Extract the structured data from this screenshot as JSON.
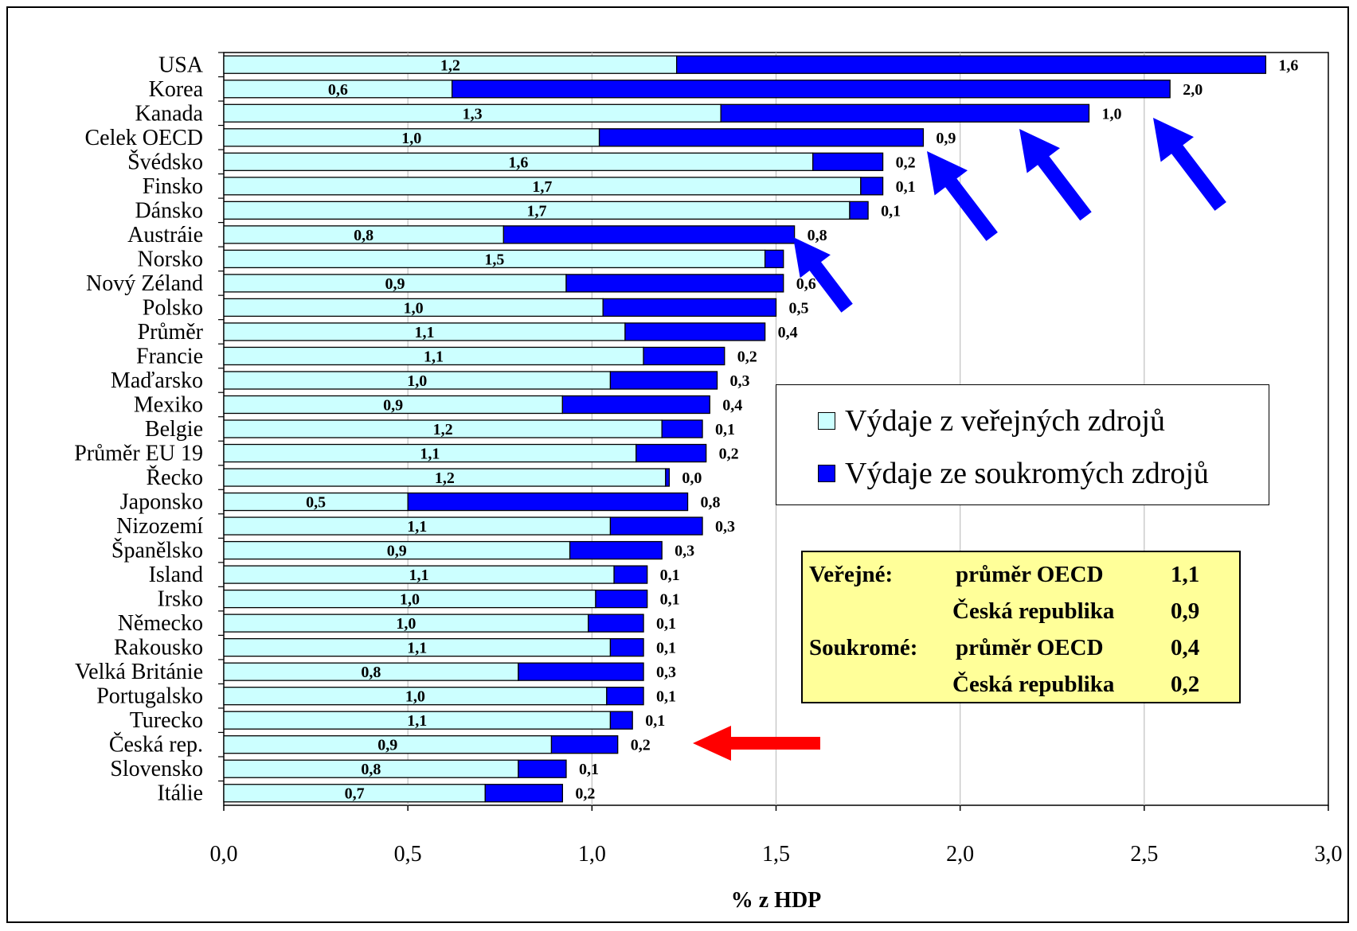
{
  "chart_data": {
    "type": "bar",
    "orientation": "horizontal",
    "stacked": true,
    "categories": [
      "USA",
      "Korea",
      "Kanada",
      "Celek OECD",
      "Švédsko",
      "Finsko",
      "Dánsko",
      "Austráie",
      "Norsko",
      "Nový Zéland",
      "Polsko",
      "Průměr",
      "Francie",
      "Maďarsko",
      "Mexiko",
      "Belgie",
      "Průměr EU 19",
      "Řecko",
      "Japonsko",
      "Nizozemí",
      "Španělsko",
      "Island",
      "Irsko",
      "Německo",
      "Rakousko",
      "Velká Británie",
      "Portugalsko",
      "Turecko",
      "Česká rep.",
      "Slovensko",
      "Itálie"
    ],
    "series": [
      {
        "name": "Výdaje z veřejných zdrojů",
        "color": "#ccffff",
        "values": [
          1.23,
          0.62,
          1.35,
          1.02,
          1.6,
          1.73,
          1.7,
          0.76,
          1.47,
          0.93,
          1.03,
          1.09,
          1.14,
          1.05,
          0.92,
          1.19,
          1.12,
          1.2,
          0.5,
          1.05,
          0.94,
          1.06,
          1.01,
          0.99,
          1.05,
          0.8,
          1.04,
          1.05,
          0.89,
          0.8,
          0.71
        ],
        "labels": [
          "1,2",
          "0,6",
          "1,3",
          "1,0",
          "1,6",
          "1,7",
          "1,7",
          "0,8",
          "1,5",
          "0,9",
          "1,0",
          "1,1",
          "1,1",
          "1,0",
          "0,9",
          "1,2",
          "1,1",
          "1,2",
          "0,5",
          "1,1",
          "0,9",
          "1,1",
          "1,0",
          "1,0",
          "1,1",
          "0,8",
          "1,0",
          "1,1",
          "0,9",
          "0,8",
          "0,7"
        ]
      },
      {
        "name": "Výdaje ze soukromých zdrojů",
        "color": "#0000ff",
        "values": [
          1.6,
          1.95,
          1.0,
          0.88,
          0.19,
          0.06,
          0.05,
          0.79,
          0.05,
          0.59,
          0.47,
          0.38,
          0.22,
          0.29,
          0.4,
          0.11,
          0.19,
          0.01,
          0.76,
          0.25,
          0.25,
          0.09,
          0.14,
          0.15,
          0.09,
          0.34,
          0.1,
          0.06,
          0.18,
          0.13,
          0.21
        ],
        "labels": [
          "1,6",
          "2,0",
          "1,0",
          "0,9",
          "0,2",
          "0,1",
          "0,1",
          "0,8",
          "",
          "0,6",
          "0,5",
          "0,4",
          "0,2",
          "0,3",
          "0,4",
          "0,1",
          "0,2",
          "0,0",
          "0,8",
          "0,3",
          "0,3",
          "0,1",
          "0,1",
          "0,1",
          "0,1",
          "0,3",
          "0,1",
          "0,1",
          "0,2",
          "0,1",
          "0,2"
        ]
      }
    ],
    "xlim": [
      0,
      3
    ],
    "xticks": [
      "0,0",
      "0,5",
      "1,0",
      "1,5",
      "2,0",
      "2,5",
      "3,0"
    ],
    "xlabel": "% z HDP",
    "grid": "vertical",
    "legend_placement": "right-middle",
    "annotations": {
      "blue_arrows": 4,
      "red_arrow_target": "Česká rep."
    }
  },
  "legend": {
    "public": "Výdaje z veřejných zdrojů",
    "private": "Výdaje ze soukromých zdrojů"
  },
  "summary_box": {
    "row1_group": "Veřejné:",
    "row1_label": "průměr OECD",
    "row1_value": "1,1",
    "row2_label": "Česká republika",
    "row2_value": "0,9",
    "row3_group": "Soukromé:",
    "row3_label": "průměr OECD",
    "row3_value": "0,4",
    "row4_label": "Česká republika",
    "row4_value": "0,2"
  },
  "colors": {
    "public_fill": "#ccffff",
    "private_fill": "#0000ff",
    "arrow_blue": "#0000ff",
    "arrow_red": "#ff0000",
    "info_box_fill": "#ffff99"
  }
}
